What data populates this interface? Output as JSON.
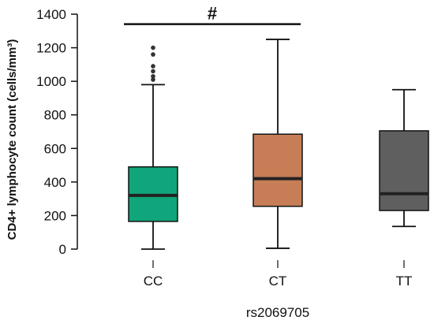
{
  "chart_data": {
    "type": "box",
    "ylabel": "CD4+ lymphocyte count (cells/mm³)",
    "xlabel": "rs2069705",
    "ylim": [
      0,
      1400
    ],
    "yticks": [
      0,
      200,
      400,
      600,
      800,
      1000,
      1200,
      1400
    ],
    "grid": false,
    "categories": [
      "CC",
      "CT",
      "TT"
    ],
    "boxes": [
      {
        "category": "CC",
        "whisker_low": 0,
        "q1": 165,
        "median": 320,
        "q3": 490,
        "whisker_high": 980,
        "outliers": [
          1010,
          1030,
          1060,
          1090,
          1160,
          1200
        ],
        "color": "#10A57B"
      },
      {
        "category": "CT",
        "whisker_low": 5,
        "q1": 255,
        "median": 420,
        "q3": 685,
        "whisker_high": 1250,
        "outliers": [],
        "color": "#C77E56"
      },
      {
        "category": "TT",
        "whisker_low": 135,
        "q1": 230,
        "median": 330,
        "q3": 705,
        "whisker_high": 950,
        "outliers": [],
        "color": "#5F5F5F"
      }
    ],
    "annotations": [
      {
        "text": "#",
        "from": "CC",
        "to": "CT",
        "y": 1350
      }
    ]
  }
}
